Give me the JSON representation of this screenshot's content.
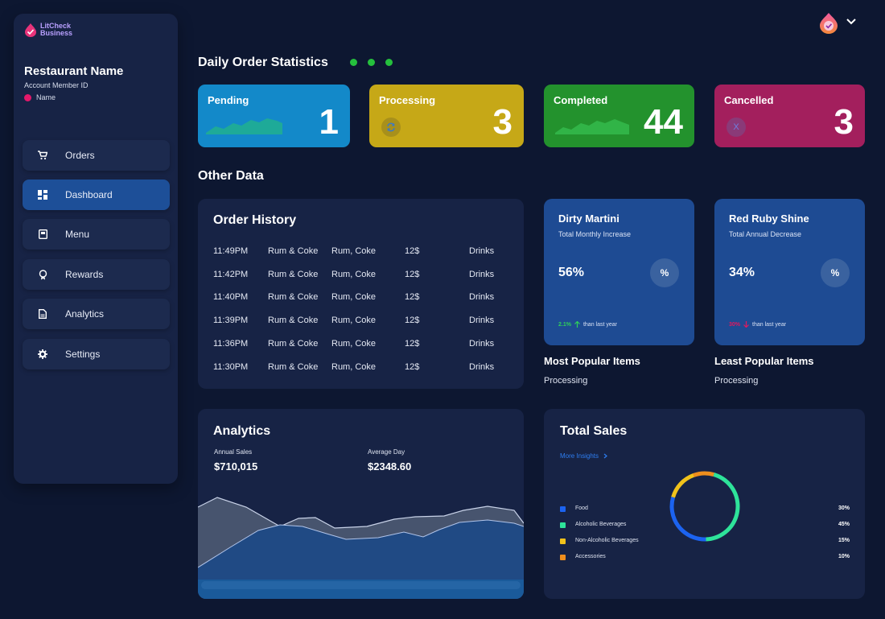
{
  "brand": {
    "line1": "LitCheck",
    "line2": "Business"
  },
  "sidebar": {
    "restaurant_name": "Restaurant Name",
    "account_member_id": "Account Member ID",
    "name": "Name",
    "items": [
      {
        "label": "Orders",
        "icon": "cart-icon"
      },
      {
        "label": "Dashboard",
        "icon": "dashboard-icon",
        "active": true
      },
      {
        "label": "Menu",
        "icon": "menu-book-icon"
      },
      {
        "label": "Rewards",
        "icon": "award-icon"
      },
      {
        "label": "Analytics",
        "icon": "document-icon"
      },
      {
        "label": "Settings",
        "icon": "gear-icon"
      }
    ]
  },
  "header": {
    "avatar_icon": "litcheck-avatar-icon",
    "dropdown_icon": "chevron-down-icon"
  },
  "daily": {
    "title": "Daily Order Statistics",
    "cards": [
      {
        "label": "Pending",
        "value": "1",
        "color": "#1389c9"
      },
      {
        "label": "Processing",
        "value": "3",
        "color": "#c6a817"
      },
      {
        "label": "Completed",
        "value": "44",
        "color": "#23922d"
      },
      {
        "label": "Cancelled",
        "value": "3",
        "color": "#a31f5d",
        "badge": "X"
      }
    ]
  },
  "other_data": {
    "title": "Other Data"
  },
  "order_history": {
    "title": "Order History",
    "rows": [
      {
        "time": "11:49PM",
        "item": "Rum & Coke",
        "ingredients": "Rum, Coke",
        "price": "12$",
        "category": "Drinks"
      },
      {
        "time": "11:42PM",
        "item": "Rum & Coke",
        "ingredients": "Rum, Coke",
        "price": "12$",
        "category": "Drinks"
      },
      {
        "time": "11:40PM",
        "item": "Rum & Coke",
        "ingredients": "Rum, Coke",
        "price": "12$",
        "category": "Drinks"
      },
      {
        "time": "11:39PM",
        "item": "Rum & Coke",
        "ingredients": "Rum, Coke",
        "price": "12$",
        "category": "Drinks"
      },
      {
        "time": "11:36PM",
        "item": "Rum & Coke",
        "ingredients": "Rum, Coke",
        "price": "12$",
        "category": "Drinks"
      },
      {
        "time": "11:30PM",
        "item": "Rum & Coke",
        "ingredients": "Rum, Coke",
        "price": "12$",
        "category": "Drinks"
      }
    ]
  },
  "popular_cards": [
    {
      "title": "Dirty Martini",
      "subtitle": "Total Monthly Increase",
      "percent": "56%",
      "change": "2.1%",
      "change_dir": "up",
      "change_color": "#2fd158",
      "change_text": "than last year",
      "badge": "%"
    },
    {
      "title": "Red Ruby Shine",
      "subtitle": "Total Annual Decrease",
      "percent": "34%",
      "change": "30%",
      "change_dir": "down",
      "change_color": "#e3185e",
      "change_text": "than last year",
      "badge": "%"
    }
  ],
  "most_popular": {
    "title": "Most Popular Items",
    "status": "Processing"
  },
  "least_popular": {
    "title": "Least Popular Items",
    "status": "Processing"
  },
  "analytics": {
    "title": "Analytics",
    "annual_sales_label": "Annual Sales",
    "annual_sales": "$710,015",
    "average_day_label": "Average Day",
    "average_day": "$2348.60"
  },
  "total_sales": {
    "title": "Total Sales",
    "more_insights": "More Insights",
    "legend": [
      {
        "label": "Food",
        "value": "30%",
        "pct": 30,
        "color": "#1c63f0"
      },
      {
        "label": "Alcoholic Beverages",
        "value": "45%",
        "pct": 45,
        "color": "#2ee39a"
      },
      {
        "label": "Non-Alcoholic Beverages",
        "value": "15%",
        "pct": 15,
        "color": "#f1c21b"
      },
      {
        "label": "Accessories",
        "value": "10%",
        "pct": 10,
        "color": "#ee8e1d"
      }
    ]
  }
}
